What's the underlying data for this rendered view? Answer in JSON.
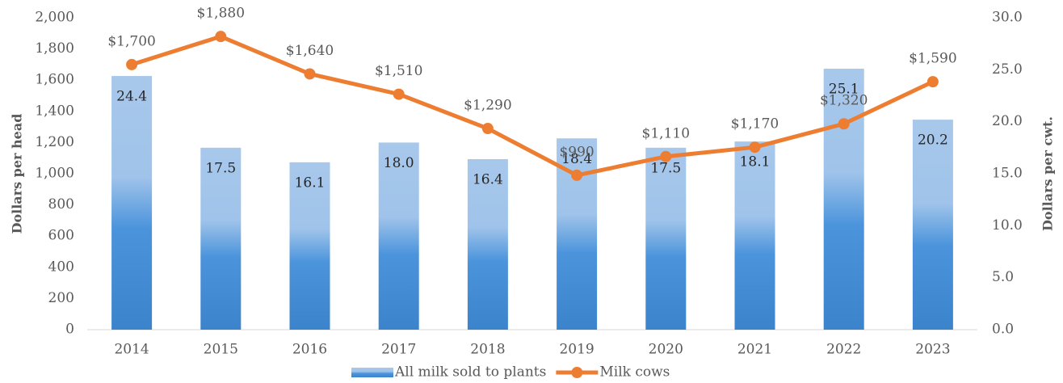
{
  "chart_data": {
    "type": "bar-line",
    "categories": [
      "2014",
      "2015",
      "2016",
      "2017",
      "2018",
      "2019",
      "2020",
      "2021",
      "2022",
      "2023"
    ],
    "series": [
      {
        "name": "All milk sold to plants",
        "type": "bar",
        "axis": "y2",
        "color": "#4a8fd8",
        "values": [
          24.4,
          17.5,
          16.1,
          18.0,
          16.4,
          18.4,
          17.5,
          18.1,
          25.1,
          20.2
        ],
        "value_labels": [
          "24.4",
          "17.5",
          "16.1",
          "18.0",
          "16.4",
          "18.4",
          "17.5",
          "18.1",
          "25.1",
          "20.2"
        ]
      },
      {
        "name": "Milk cows",
        "type": "line",
        "color": "#ed7d31",
        "values": [
          1700,
          1880,
          1640,
          1510,
          1290,
          990,
          1110,
          1170,
          1320,
          1590
        ],
        "value_labels": [
          "$1,700",
          "$1,880",
          "$1,640",
          "$1,510",
          "$1,290",
          "$990",
          "$1,110",
          "$1,170",
          "$1,320",
          "$1,590"
        ]
      }
    ],
    "ylabel": "Dollars per head",
    "y2label": "Dollars per cwt.",
    "ylim": [
      0,
      2000
    ],
    "yticks": [
      0,
      200,
      400,
      600,
      800,
      {
        "value": 1000,
        "label": "1,000"
      },
      {
        "value": 1200,
        "label": "1,200"
      },
      {
        "value": 1400,
        "label": "1,400"
      },
      {
        "value": 1600,
        "label": "1,600"
      },
      {
        "value": 1800,
        "label": "1,800"
      },
      {
        "value": 2000,
        "label": "2,000"
      }
    ],
    "y2lim": [
      0,
      30
    ],
    "y2ticks": [
      {
        "value": 0,
        "label": "0.0"
      },
      {
        "value": 5,
        "label": "5.0"
      },
      {
        "value": 10,
        "label": "10.0"
      },
      {
        "value": 15,
        "label": "15.0"
      },
      {
        "value": 20,
        "label": "20.0"
      },
      {
        "value": 25,
        "label": "25.0"
      },
      {
        "value": 30,
        "label": "30.0"
      }
    ],
    "grid": false,
    "legend": "bottom"
  }
}
